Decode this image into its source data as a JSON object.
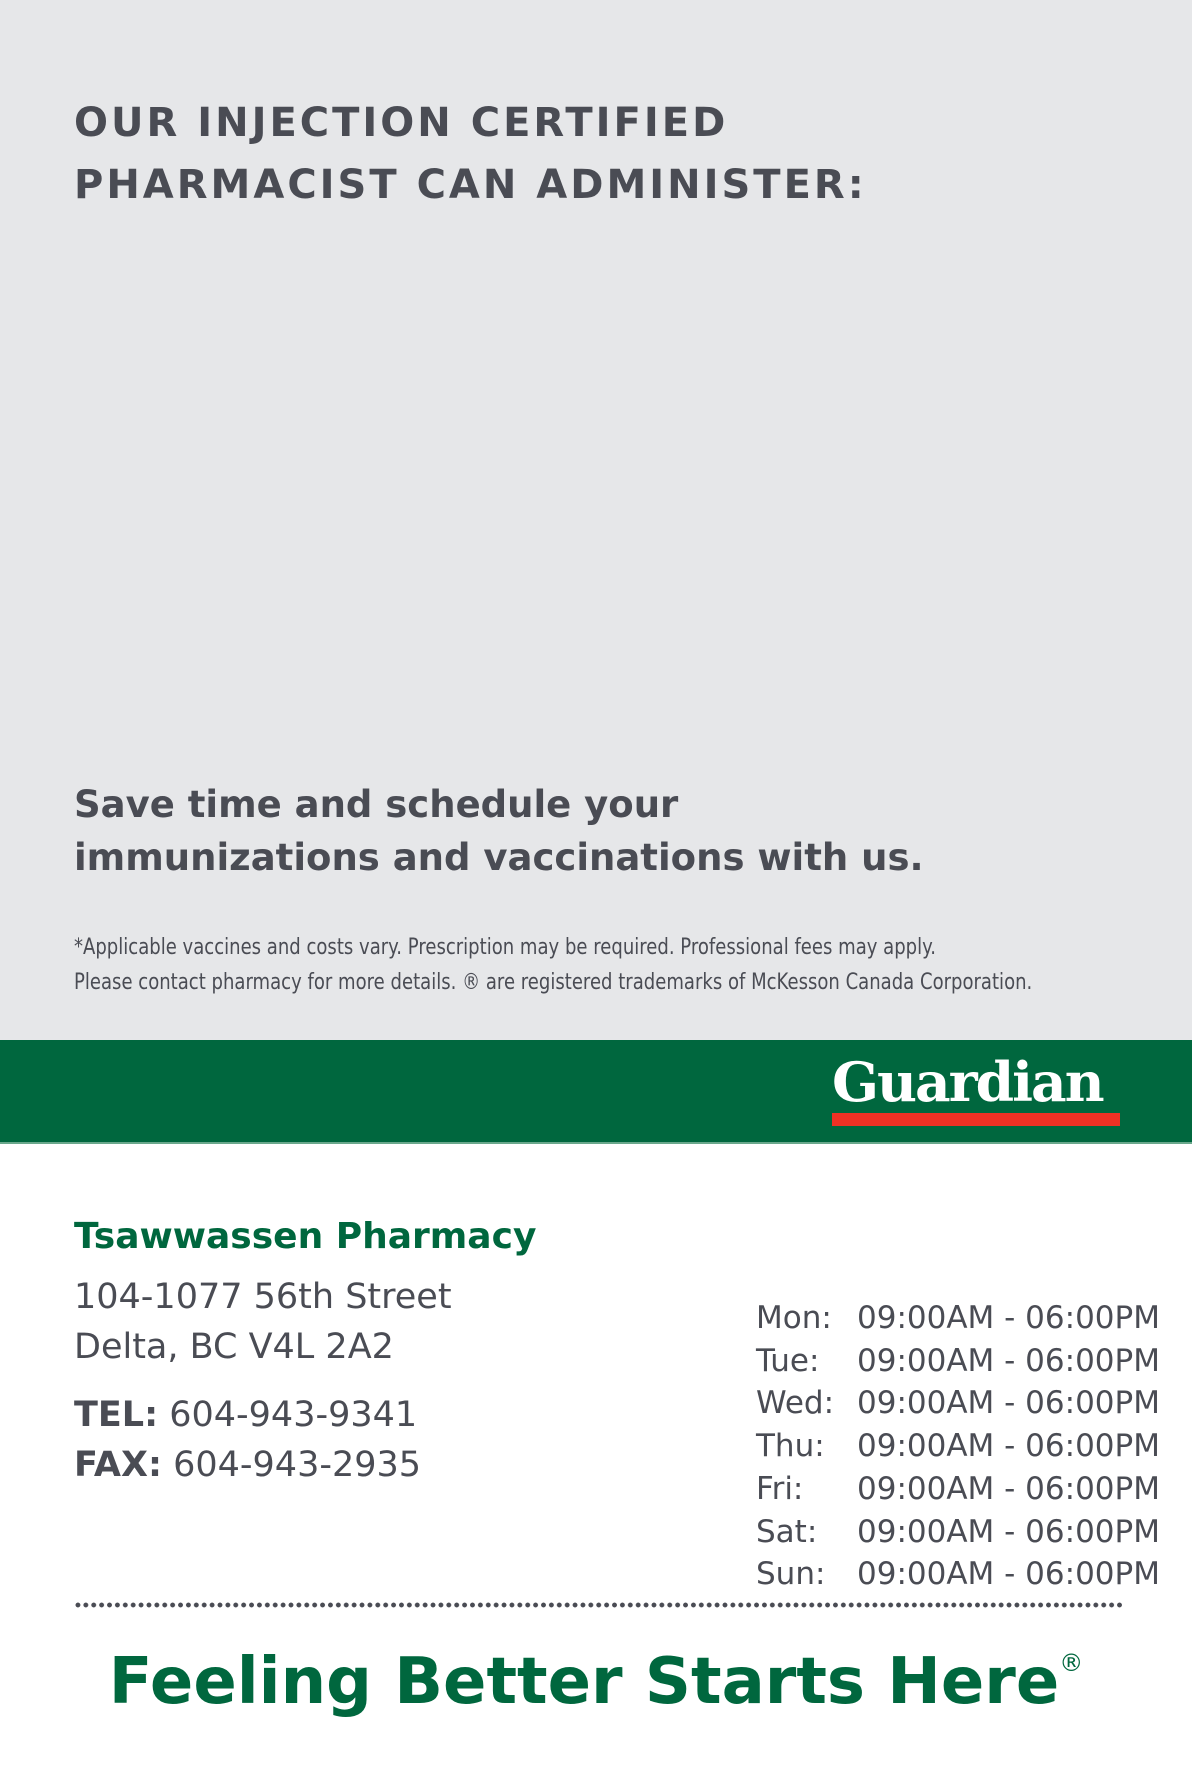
{
  "header": {
    "title_line1": "OUR INJECTION CERTIFIED",
    "title_line2": "PHARMACIST CAN ADMINISTER:"
  },
  "cta": {
    "line1": "Save time and schedule your",
    "line2": "immunizations and vaccinations with us."
  },
  "footnote": {
    "line1": "*Applicable vaccines and costs vary. Prescription may be required. Professional fees may apply.",
    "line2": "Please contact pharmacy for more details. ® are registered trademarks of McKesson Canada Corporation."
  },
  "brand": {
    "logo_text": "Guardian",
    "green": "#00673e",
    "red": "#ee3124",
    "gray_bg": "#e6e7e9"
  },
  "pharmacy": {
    "name": "Tsawwassen Pharmacy",
    "address_line1": "104-1077 56th Street",
    "address_line2": "Delta, BC V4L 2A2",
    "tel_label": "TEL:",
    "tel": "604-943-9341",
    "fax_label": "FAX:",
    "fax": "604-943-2935"
  },
  "hours": [
    {
      "day": "Mon:",
      "time": "09:00AM - 06:00PM"
    },
    {
      "day": "Tue:",
      "time": "09:00AM - 06:00PM"
    },
    {
      "day": "Wed:",
      "time": "09:00AM - 06:00PM"
    },
    {
      "day": "Thu:",
      "time": "09:00AM - 06:00PM"
    },
    {
      "day": "Fri:",
      "time": "09:00AM - 06:00PM"
    },
    {
      "day": "Sat:",
      "time": "09:00AM - 06:00PM"
    },
    {
      "day": "Sun:",
      "time": "09:00AM - 06:00PM"
    }
  ],
  "slogan": {
    "text": "Feeling Better Starts Here",
    "mark": "®"
  }
}
